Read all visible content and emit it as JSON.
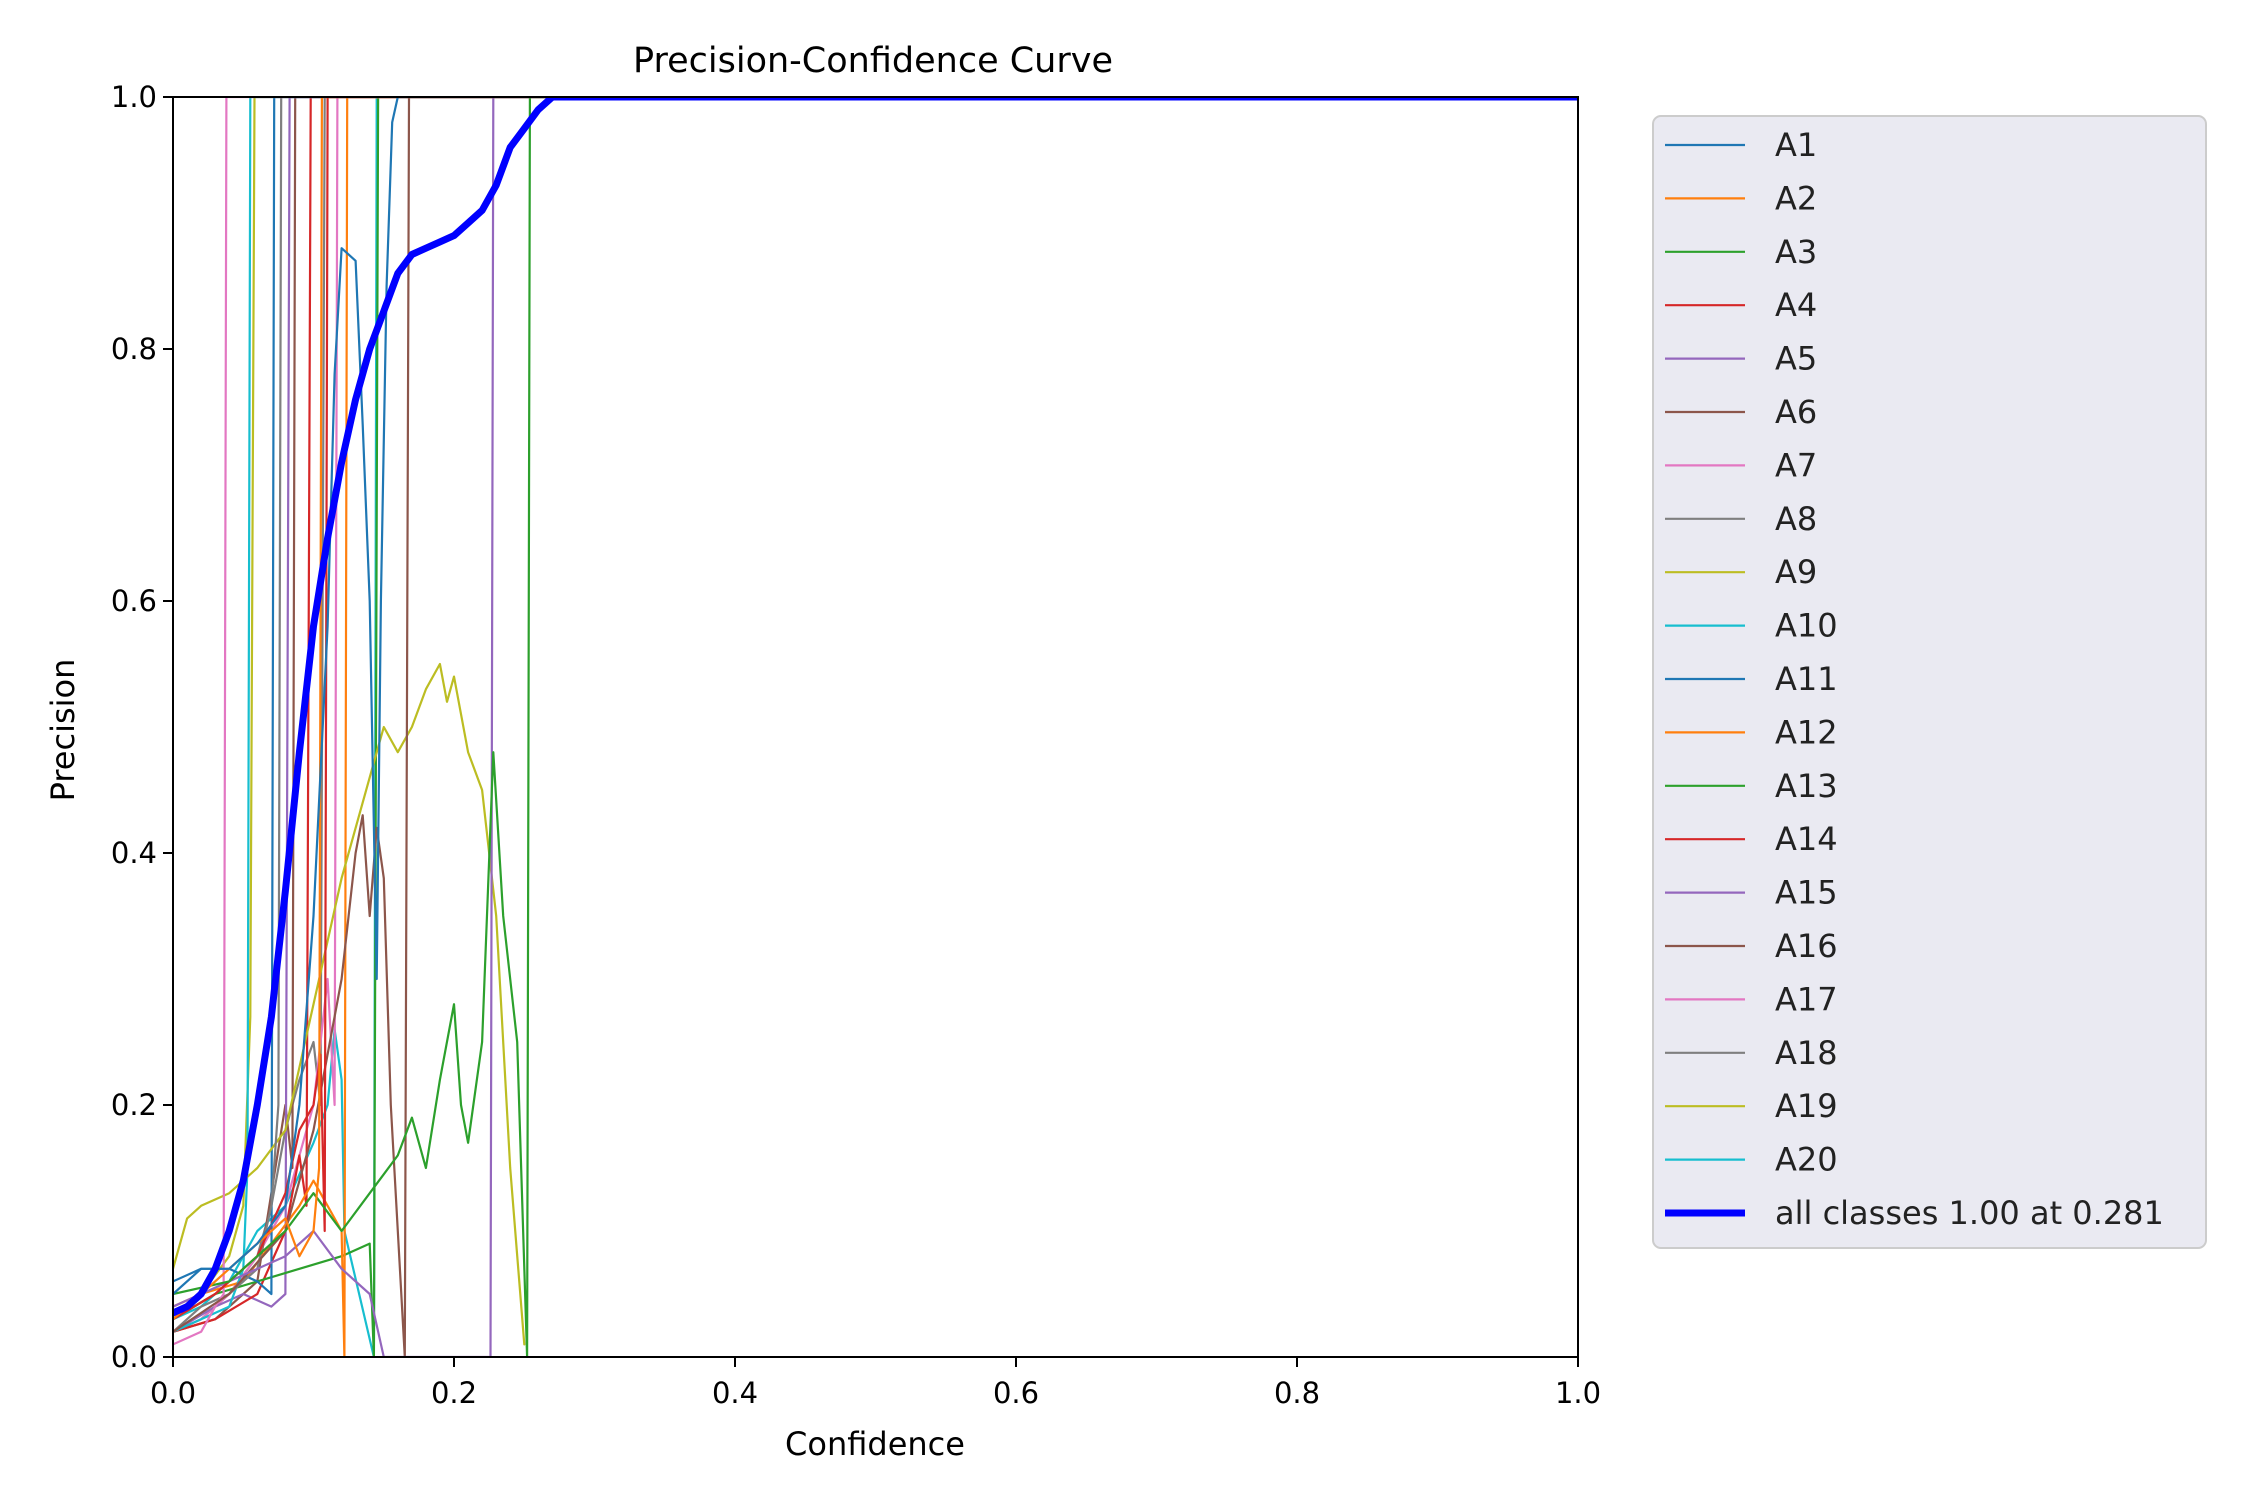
{
  "chart_data": {
    "type": "line",
    "title": "Precision-Confidence Curve",
    "xlabel": "Confidence",
    "ylabel": "Precision",
    "xlim": [
      0,
      1
    ],
    "ylim": [
      0,
      1
    ],
    "x_ticks": [
      "0.0",
      "0.2",
      "0.4",
      "0.6",
      "0.8",
      "1.0"
    ],
    "y_ticks": [
      "0.0",
      "0.2",
      "0.4",
      "0.6",
      "0.8",
      "1.0"
    ],
    "grid": false,
    "legend_position": "outside-right",
    "series": [
      {
        "name": "A1",
        "color": "#1f77b4",
        "points": [
          [
            0,
            0.05
          ],
          [
            0.02,
            0.07
          ],
          [
            0.04,
            0.07
          ],
          [
            0.06,
            0.09
          ],
          [
            0.08,
            0.12
          ],
          [
            0.09,
            0.2
          ],
          [
            0.1,
            0.35
          ],
          [
            0.11,
            0.58
          ],
          [
            0.115,
            0.78
          ],
          [
            0.12,
            0.88
          ],
          [
            0.13,
            0.87
          ],
          [
            0.135,
            0.74
          ],
          [
            0.14,
            0.6
          ],
          [
            0.145,
            0.3
          ],
          [
            0.148,
            0.6
          ],
          [
            0.152,
            0.85
          ],
          [
            0.156,
            0.98
          ],
          [
            0.16,
            1.0
          ],
          [
            1.0,
            1.0
          ]
        ]
      },
      {
        "name": "A2",
        "color": "#ff7f0e",
        "points": [
          [
            0,
            0.03
          ],
          [
            0.02,
            0.05
          ],
          [
            0.04,
            0.07
          ],
          [
            0.06,
            0.09
          ],
          [
            0.08,
            0.11
          ],
          [
            0.09,
            0.08
          ],
          [
            0.1,
            0.1
          ],
          [
            0.104,
            0.15
          ],
          [
            0.106,
            1.0
          ],
          [
            1.0,
            1.0
          ]
        ]
      },
      {
        "name": "A3",
        "color": "#2ca02c",
        "points": [
          [
            0,
            0.05
          ],
          [
            0.04,
            0.06
          ],
          [
            0.08,
            0.1
          ],
          [
            0.1,
            0.13
          ],
          [
            0.12,
            0.1
          ],
          [
            0.14,
            0.13
          ],
          [
            0.16,
            0.16
          ],
          [
            0.17,
            0.19
          ],
          [
            0.18,
            0.15
          ],
          [
            0.19,
            0.22
          ],
          [
            0.2,
            0.28
          ],
          [
            0.205,
            0.2
          ],
          [
            0.21,
            0.17
          ],
          [
            0.22,
            0.25
          ],
          [
            0.228,
            0.48
          ],
          [
            0.235,
            0.35
          ],
          [
            0.245,
            0.25
          ],
          [
            0.252,
            0.0
          ],
          [
            0.254,
            1.0
          ],
          [
            1.0,
            1.0
          ]
        ]
      },
      {
        "name": "A4",
        "color": "#d62728",
        "points": [
          [
            0,
            0.03
          ],
          [
            0.03,
            0.05
          ],
          [
            0.06,
            0.08
          ],
          [
            0.08,
            0.13
          ],
          [
            0.09,
            0.18
          ],
          [
            0.1,
            0.2
          ],
          [
            0.105,
            0.24
          ],
          [
            0.108,
            0.1
          ],
          [
            0.11,
            1.0
          ],
          [
            1.0,
            1.0
          ]
        ]
      },
      {
        "name": "A5",
        "color": "#9467bd",
        "points": [
          [
            0,
            0.04
          ],
          [
            0.04,
            0.06
          ],
          [
            0.08,
            0.08
          ],
          [
            0.1,
            0.1
          ],
          [
            0.12,
            0.07
          ],
          [
            0.14,
            0.05
          ],
          [
            0.15,
            0.0
          ],
          [
            0.226,
            0.0
          ],
          [
            0.228,
            1.0
          ],
          [
            1.0,
            1.0
          ]
        ]
      },
      {
        "name": "A6",
        "color": "#8c564b",
        "points": [
          [
            0,
            0.02
          ],
          [
            0.04,
            0.05
          ],
          [
            0.08,
            0.1
          ],
          [
            0.1,
            0.18
          ],
          [
            0.12,
            0.3
          ],
          [
            0.13,
            0.4
          ],
          [
            0.135,
            0.43
          ],
          [
            0.14,
            0.35
          ],
          [
            0.145,
            0.42
          ],
          [
            0.15,
            0.38
          ],
          [
            0.155,
            0.2
          ],
          [
            0.165,
            0.0
          ],
          [
            0.168,
            1.0
          ],
          [
            1.0,
            1.0
          ]
        ]
      },
      {
        "name": "A7",
        "color": "#e377c2",
        "points": [
          [
            0,
            0.01
          ],
          [
            0.02,
            0.02
          ],
          [
            0.03,
            0.04
          ],
          [
            0.036,
            0.05
          ],
          [
            0.038,
            1.0
          ],
          [
            1.0,
            1.0
          ]
        ]
      },
      {
        "name": "A8",
        "color": "#7f7f7f",
        "points": [
          [
            0,
            0.02
          ],
          [
            0.02,
            0.04
          ],
          [
            0.04,
            0.05
          ],
          [
            0.06,
            0.07
          ],
          [
            0.07,
            0.12
          ],
          [
            0.075,
            0.2
          ],
          [
            0.077,
            1.0
          ],
          [
            1.0,
            1.0
          ]
        ]
      },
      {
        "name": "A9",
        "color": "#bcbd22",
        "points": [
          [
            0,
            0.07
          ],
          [
            0.01,
            0.11
          ],
          [
            0.02,
            0.12
          ],
          [
            0.04,
            0.13
          ],
          [
            0.06,
            0.15
          ],
          [
            0.08,
            0.18
          ],
          [
            0.1,
            0.28
          ],
          [
            0.12,
            0.38
          ],
          [
            0.14,
            0.46
          ],
          [
            0.15,
            0.5
          ],
          [
            0.16,
            0.48
          ],
          [
            0.17,
            0.5
          ],
          [
            0.18,
            0.53
          ],
          [
            0.19,
            0.55
          ],
          [
            0.195,
            0.52
          ],
          [
            0.2,
            0.54
          ],
          [
            0.21,
            0.48
          ],
          [
            0.22,
            0.45
          ],
          [
            0.23,
            0.35
          ],
          [
            0.24,
            0.15
          ],
          [
            0.25,
            0.01
          ]
        ]
      },
      {
        "name": "A10",
        "color": "#17becf",
        "points": [
          [
            0,
            0.02
          ],
          [
            0.02,
            0.03
          ],
          [
            0.04,
            0.04
          ],
          [
            0.05,
            0.07
          ],
          [
            0.053,
            0.15
          ],
          [
            0.055,
            1.0
          ],
          [
            1.0,
            1.0
          ]
        ]
      },
      {
        "name": "A11",
        "color": "#1f77b4",
        "points": [
          [
            0,
            0.06
          ],
          [
            0.02,
            0.07
          ],
          [
            0.04,
            0.07
          ],
          [
            0.06,
            0.06
          ],
          [
            0.07,
            0.05
          ],
          [
            0.072,
            1.0
          ],
          [
            1.0,
            1.0
          ]
        ]
      },
      {
        "name": "A12",
        "color": "#ff7f0e",
        "points": [
          [
            0,
            0.04
          ],
          [
            0.02,
            0.05
          ],
          [
            0.05,
            0.06
          ],
          [
            0.07,
            0.09
          ],
          [
            0.09,
            0.12
          ],
          [
            0.1,
            0.14
          ],
          [
            0.11,
            0.12
          ],
          [
            0.12,
            0.1
          ],
          [
            0.122,
            0.0
          ],
          [
            0.124,
            1.0
          ],
          [
            1.0,
            1.0
          ]
        ]
      },
      {
        "name": "A13",
        "color": "#2ca02c",
        "points": [
          [
            0,
            0.03
          ],
          [
            0.03,
            0.05
          ],
          [
            0.06,
            0.06
          ],
          [
            0.09,
            0.07
          ],
          [
            0.12,
            0.08
          ],
          [
            0.14,
            0.09
          ],
          [
            0.143,
            0.0
          ],
          [
            0.146,
            1.0
          ],
          [
            1.0,
            1.0
          ]
        ]
      },
      {
        "name": "A14",
        "color": "#d62728",
        "points": [
          [
            0,
            0.02
          ],
          [
            0.03,
            0.03
          ],
          [
            0.06,
            0.05
          ],
          [
            0.08,
            0.1
          ],
          [
            0.09,
            0.16
          ],
          [
            0.095,
            0.12
          ],
          [
            0.098,
            1.0
          ],
          [
            1.0,
            1.0
          ]
        ]
      },
      {
        "name": "A15",
        "color": "#9467bd",
        "points": [
          [
            0,
            0.02
          ],
          [
            0.03,
            0.04
          ],
          [
            0.05,
            0.05
          ],
          [
            0.07,
            0.04
          ],
          [
            0.08,
            0.05
          ],
          [
            0.083,
            1.0
          ],
          [
            1.0,
            1.0
          ]
        ]
      },
      {
        "name": "A16",
        "color": "#8c564b",
        "points": [
          [
            0,
            0.02
          ],
          [
            0.03,
            0.03
          ],
          [
            0.06,
            0.06
          ],
          [
            0.08,
            0.2
          ],
          [
            0.085,
            0.15
          ],
          [
            0.087,
            1.0
          ],
          [
            1.0,
            1.0
          ]
        ]
      },
      {
        "name": "A17",
        "color": "#e377c2",
        "points": [
          [
            0,
            0.02
          ],
          [
            0.02,
            0.03
          ],
          [
            0.04,
            0.05
          ],
          [
            0.06,
            0.08
          ],
          [
            0.08,
            0.12
          ],
          [
            0.1,
            0.2
          ],
          [
            0.11,
            0.3
          ],
          [
            0.115,
            0.2
          ],
          [
            0.117,
            1.0
          ],
          [
            1.0,
            1.0
          ]
        ]
      },
      {
        "name": "A18",
        "color": "#7f7f7f",
        "points": [
          [
            0,
            0.02
          ],
          [
            0.02,
            0.03
          ],
          [
            0.04,
            0.05
          ],
          [
            0.06,
            0.08
          ],
          [
            0.07,
            0.12
          ],
          [
            0.08,
            0.18
          ],
          [
            0.09,
            0.22
          ],
          [
            0.1,
            0.25
          ],
          [
            0.105,
            0.2
          ],
          [
            0.108,
            1.0
          ],
          [
            1.0,
            1.0
          ]
        ]
      },
      {
        "name": "A19",
        "color": "#bcbd22",
        "points": [
          [
            0,
            0.03
          ],
          [
            0.02,
            0.05
          ],
          [
            0.04,
            0.08
          ],
          [
            0.05,
            0.12
          ],
          [
            0.055,
            0.27
          ],
          [
            0.058,
            1.0
          ],
          [
            1.0,
            1.0
          ]
        ]
      },
      {
        "name": "A20",
        "color": "#17becf",
        "points": [
          [
            0,
            0.03
          ],
          [
            0.02,
            0.04
          ],
          [
            0.04,
            0.06
          ],
          [
            0.06,
            0.1
          ],
          [
            0.08,
            0.12
          ],
          [
            0.1,
            0.17
          ],
          [
            0.11,
            0.2
          ],
          [
            0.115,
            0.26
          ],
          [
            0.12,
            0.22
          ],
          [
            0.122,
            0.1
          ],
          [
            0.143,
            0.0
          ],
          [
            0.145,
            1.0
          ],
          [
            1.0,
            1.0
          ]
        ]
      },
      {
        "name": "all classes 1.00 at 0.281",
        "color": "#0000ff",
        "emphasis": true,
        "points": [
          [
            0,
            0.035
          ],
          [
            0.01,
            0.04
          ],
          [
            0.02,
            0.05
          ],
          [
            0.03,
            0.07
          ],
          [
            0.04,
            0.1
          ],
          [
            0.05,
            0.14
          ],
          [
            0.06,
            0.2
          ],
          [
            0.07,
            0.27
          ],
          [
            0.08,
            0.37
          ],
          [
            0.09,
            0.48
          ],
          [
            0.1,
            0.58
          ],
          [
            0.11,
            0.65
          ],
          [
            0.12,
            0.71
          ],
          [
            0.13,
            0.76
          ],
          [
            0.14,
            0.8
          ],
          [
            0.15,
            0.83
          ],
          [
            0.16,
            0.86
          ],
          [
            0.17,
            0.875
          ],
          [
            0.18,
            0.88
          ],
          [
            0.19,
            0.885
          ],
          [
            0.2,
            0.89
          ],
          [
            0.21,
            0.9
          ],
          [
            0.22,
            0.91
          ],
          [
            0.23,
            0.93
          ],
          [
            0.24,
            0.96
          ],
          [
            0.25,
            0.975
          ],
          [
            0.26,
            0.99
          ],
          [
            0.27,
            1.0
          ],
          [
            0.281,
            1.0
          ],
          [
            1.0,
            1.0
          ]
        ]
      }
    ]
  }
}
